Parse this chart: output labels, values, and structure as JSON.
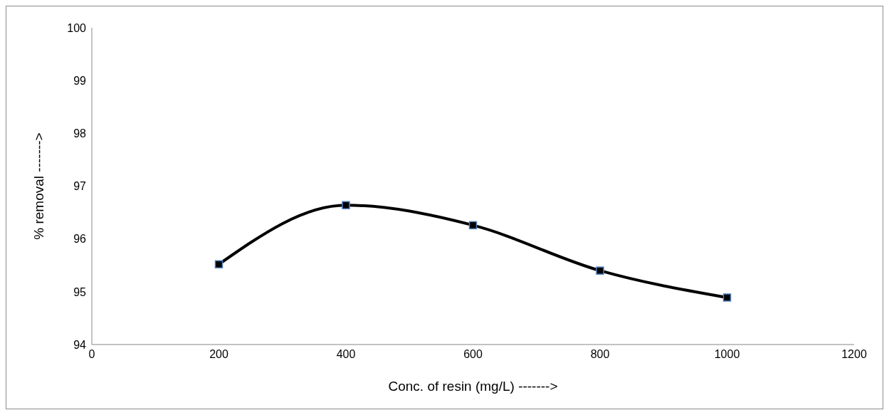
{
  "chart_data": {
    "type": "line",
    "xlabel": "Conc. of resin (mg/L) ------->",
    "ylabel": "% removal ------->",
    "x": [
      200,
      400,
      600,
      800,
      1000
    ],
    "series": [
      {
        "color": "#000000",
        "values": [
          95.52,
          96.64,
          96.26,
          95.4,
          94.89
        ]
      }
    ],
    "xlim": [
      0,
      1200
    ],
    "xticks": [
      0,
      200,
      400,
      600,
      800,
      1000,
      1200
    ],
    "ylim": [
      94,
      100
    ],
    "yticks": [
      94,
      95,
      96,
      97,
      98,
      99,
      100
    ],
    "grid": false,
    "legend": false,
    "marker": "square",
    "line_style": "solid"
  }
}
